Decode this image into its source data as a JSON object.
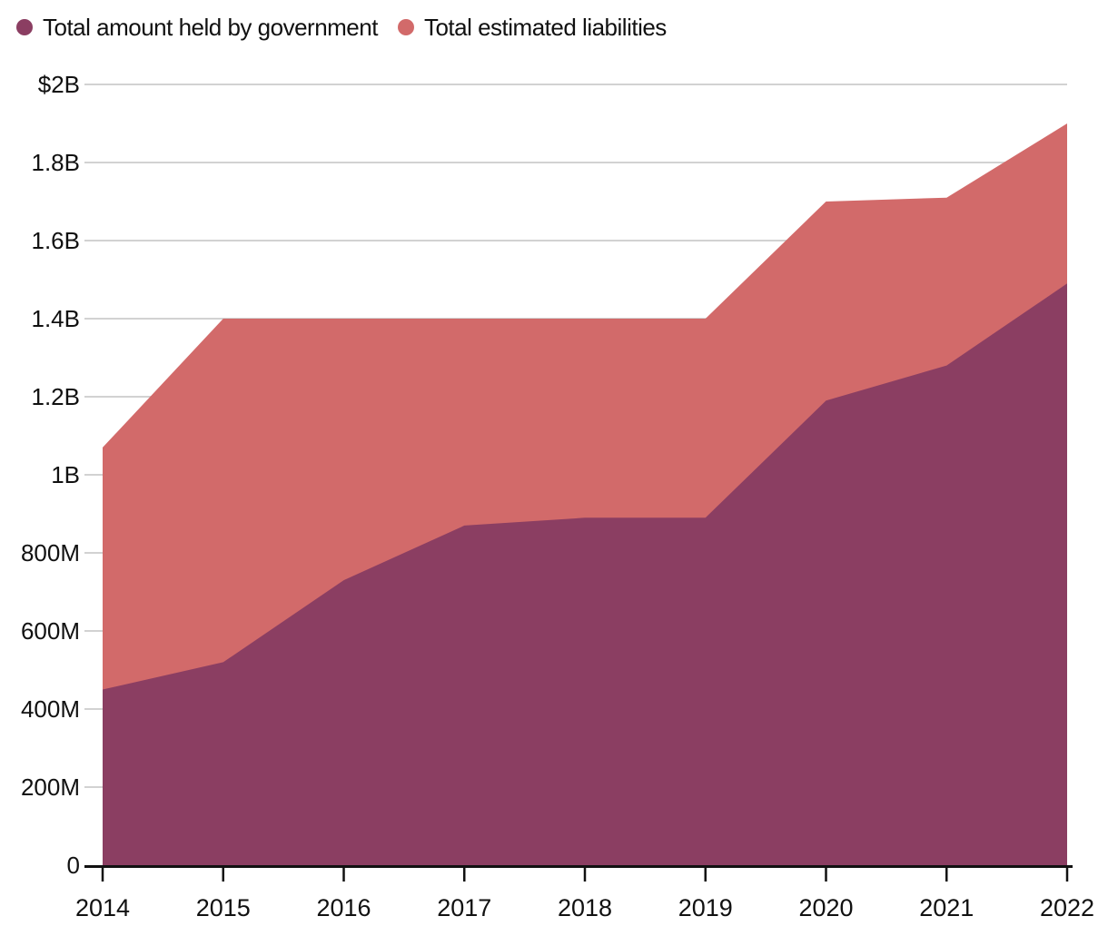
{
  "legend": {
    "items": [
      {
        "label": "Total amount held by government",
        "color": "#8b3e62"
      },
      {
        "label": "Total estimated liabilities",
        "color": "#d26a6a"
      }
    ]
  },
  "chart_data": {
    "type": "area",
    "title": "",
    "xlabel": "",
    "ylabel": "",
    "x": [
      2014,
      2015,
      2016,
      2017,
      2018,
      2019,
      2020,
      2021,
      2022
    ],
    "series": [
      {
        "name": "Total estimated liabilities",
        "color": "#d26a6a",
        "values_millions_usd": [
          1070,
          1400,
          1400,
          1400,
          1400,
          1400,
          1700,
          1710,
          1900
        ]
      },
      {
        "name": "Total amount held by government",
        "color": "#8b3e62",
        "values_millions_usd": [
          450,
          520,
          730,
          870,
          890,
          890,
          1190,
          1280,
          1490
        ]
      }
    ],
    "stacked": false,
    "grid": true,
    "legend_position": "top-left",
    "ylim": [
      0,
      2000
    ],
    "y_axis": {
      "tick_labels": [
        "$2B",
        "1.8B",
        "1.6B",
        "1.4B",
        "1.2B",
        "1B",
        "800M",
        "600M",
        "400M",
        "200M",
        "0"
      ],
      "tick_values": [
        2000,
        1800,
        1600,
        1400,
        1200,
        1000,
        800,
        600,
        400,
        200,
        0
      ]
    },
    "x_axis": {
      "tick_labels": [
        "2014",
        "2015",
        "2016",
        "2017",
        "2018",
        "2019",
        "2020",
        "2021",
        "2022"
      ]
    },
    "colors": {
      "grid": "#d2d2d2",
      "axis": "#111111",
      "text": "#111111",
      "background": "#ffffff"
    }
  }
}
